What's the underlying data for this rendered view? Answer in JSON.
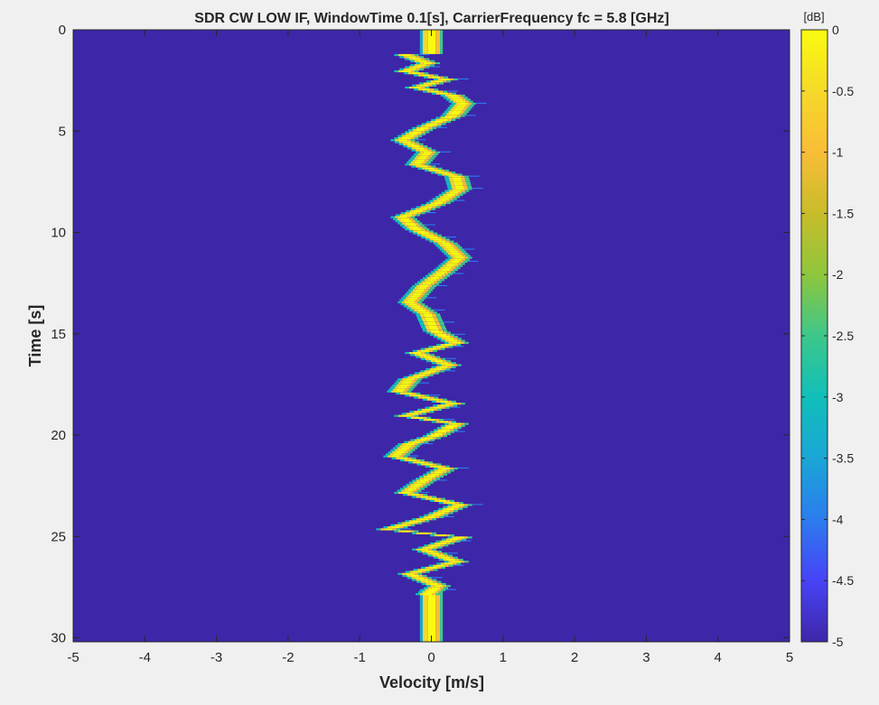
{
  "chart_data": {
    "type": "heatmap",
    "title": "SDR CW LOW IF, WindowTime 0.1[s], CarrierFrequency fc = 5.8 [GHz]",
    "xlabel": "Velocity [m/s]",
    "ylabel": "Time [s]",
    "xlim": [
      -5,
      5
    ],
    "ylim": [
      0,
      30.2
    ],
    "y_reversed": true,
    "xticks": [
      -5,
      -4,
      -3,
      -2,
      -1,
      0,
      1,
      2,
      3,
      4,
      5
    ],
    "yticks": [
      0,
      5,
      10,
      15,
      20,
      25,
      30
    ],
    "grid": false,
    "colormap": "parula",
    "colorbar": {
      "label": "[dB]",
      "limits": [
        -5,
        0
      ],
      "ticks": [
        0,
        -0.5,
        -1,
        -1.5,
        -2,
        -2.5,
        -3,
        -3.5,
        -4,
        -4.5,
        -5
      ],
      "colors": [
        "#3e26a8",
        "#4743f7",
        "#2c7cef",
        "#1aa6d6",
        "#10bfb9",
        "#3dc78a",
        "#8ec63c",
        "#c8bc2a",
        "#f9bd37",
        "#f5d929",
        "#f9fb0e"
      ]
    },
    "background_color": "#3e26a8",
    "zero_doppler": {
      "center": 0.0,
      "half_width": 0.12,
      "visible_ranges": [
        [
          0,
          1.2
        ],
        [
          27.6,
          30.2
        ]
      ]
    },
    "doppler_trace": [
      {
        "t": 1.2,
        "v": -0.35
      },
      {
        "t": 1.6,
        "v": -0.05
      },
      {
        "t": 2.0,
        "v": -0.35
      },
      {
        "t": 2.4,
        "v": 0.2
      },
      {
        "t": 2.8,
        "v": -0.2
      },
      {
        "t": 3.2,
        "v": 0.3
      },
      {
        "t": 3.6,
        "v": 0.45
      },
      {
        "t": 4.2,
        "v": 0.3
      },
      {
        "t": 4.8,
        "v": -0.1
      },
      {
        "t": 5.4,
        "v": -0.4
      },
      {
        "t": 6.0,
        "v": -0.05
      },
      {
        "t": 6.6,
        "v": -0.2
      },
      {
        "t": 7.2,
        "v": 0.35
      },
      {
        "t": 7.8,
        "v": 0.4
      },
      {
        "t": 8.5,
        "v": 0.1
      },
      {
        "t": 9.2,
        "v": -0.4
      },
      {
        "t": 9.8,
        "v": -0.2
      },
      {
        "t": 10.5,
        "v": 0.2
      },
      {
        "t": 11.2,
        "v": 0.4
      },
      {
        "t": 11.8,
        "v": 0.2
      },
      {
        "t": 12.6,
        "v": -0.1
      },
      {
        "t": 13.4,
        "v": -0.3
      },
      {
        "t": 14.0,
        "v": -0.05
      },
      {
        "t": 14.8,
        "v": 0.05
      },
      {
        "t": 15.4,
        "v": 0.35
      },
      {
        "t": 15.9,
        "v": -0.2
      },
      {
        "t": 16.5,
        "v": 0.25
      },
      {
        "t": 17.2,
        "v": -0.3
      },
      {
        "t": 17.8,
        "v": -0.45
      },
      {
        "t": 18.4,
        "v": 0.3
      },
      {
        "t": 19.0,
        "v": -0.35
      },
      {
        "t": 19.4,
        "v": 0.35
      },
      {
        "t": 20.0,
        "v": 0.05
      },
      {
        "t": 20.4,
        "v": -0.3
      },
      {
        "t": 21.0,
        "v": -0.5
      },
      {
        "t": 21.6,
        "v": 0.2
      },
      {
        "t": 22.2,
        "v": -0.1
      },
      {
        "t": 22.8,
        "v": -0.35
      },
      {
        "t": 23.4,
        "v": 0.4
      },
      {
        "t": 24.0,
        "v": 0.0
      },
      {
        "t": 24.6,
        "v": -0.6
      },
      {
        "t": 25.0,
        "v": 0.4
      },
      {
        "t": 25.6,
        "v": -0.1
      },
      {
        "t": 26.2,
        "v": 0.35
      },
      {
        "t": 26.8,
        "v": -0.3
      },
      {
        "t": 27.4,
        "v": 0.1
      },
      {
        "t": 27.8,
        "v": -0.05
      }
    ]
  }
}
